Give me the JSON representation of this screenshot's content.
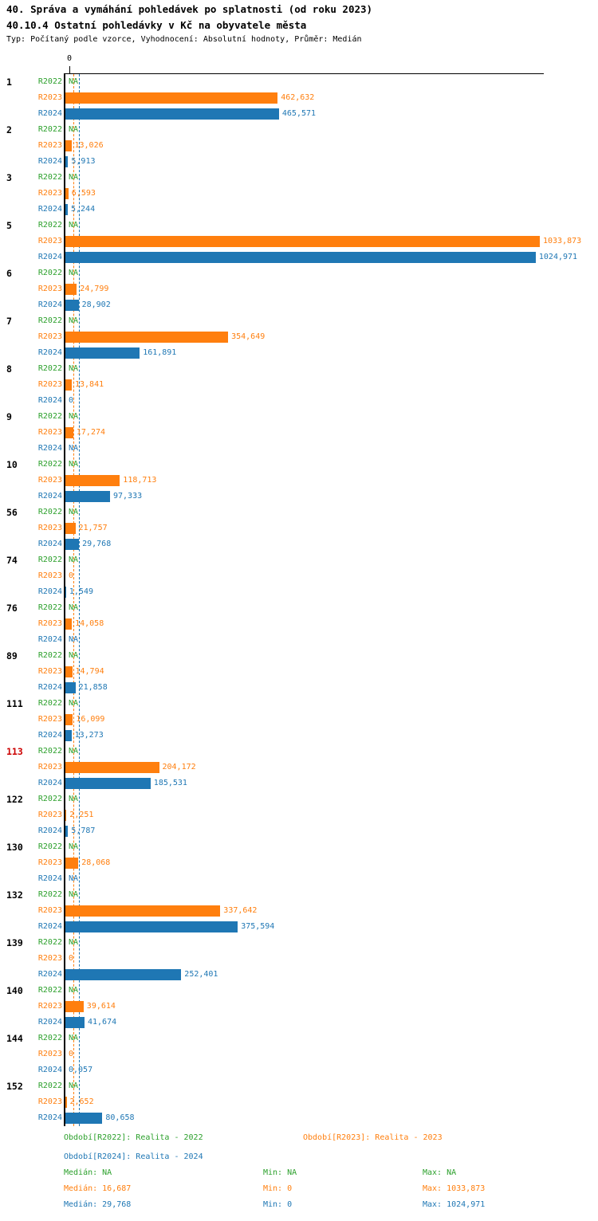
{
  "header": {
    "title": "40. Správa a vymáhání pohledávek po splatnosti (od roku 2023)",
    "subtitle": "40.10.4 Ostatní pohledávky v Kč na obyvatele města",
    "meta": "Typ: Počítaný podle vzorce, Vyhodnocení: Absolutní hodnoty, Průměr: Medián"
  },
  "axis": {
    "zero_label": "0"
  },
  "colors": {
    "r2022_green": "#2ca02c",
    "r2023_orange": "#ff7f0e",
    "r2024_blue": "#1f77b4",
    "highlight_red": "#cc0000",
    "axis_black": "#000000"
  },
  "chart_data": {
    "type": "bar",
    "orientation": "horizontal",
    "value_unit": "Kč na obyvatele města",
    "decimal_format": "czech-comma",
    "categories": [
      "1",
      "2",
      "3",
      "5",
      "6",
      "7",
      "8",
      "9",
      "10",
      "56",
      "74",
      "76",
      "89",
      "111",
      "113",
      "122",
      "130",
      "132",
      "139",
      "140",
      "144",
      "152"
    ],
    "highlighted_category": "113",
    "series": [
      {
        "name": "R2022",
        "legend": "Období[R2022]: Realita - 2022",
        "color": "#2ca02c",
        "values": [
          null,
          null,
          null,
          null,
          null,
          null,
          null,
          null,
          null,
          null,
          null,
          null,
          null,
          null,
          null,
          null,
          null,
          null,
          null,
          null,
          null,
          null
        ],
        "labels": [
          "NA",
          "NA",
          "NA",
          "NA",
          "NA",
          "NA",
          "NA",
          "NA",
          "NA",
          "NA",
          "NA",
          "NA",
          "NA",
          "NA",
          "NA",
          "NA",
          "NA",
          "NA",
          "NA",
          "NA",
          "NA",
          "NA"
        ],
        "stats": {
          "median_label": "Medián: NA",
          "min_label": "Min: NA",
          "max_label": "Max: NA"
        }
      },
      {
        "name": "R2023",
        "legend": "Období[R2023]: Realita - 2023",
        "color": "#ff7f0e",
        "values": [
          462.632,
          13.026,
          6.593,
          1033.873,
          24.799,
          354.649,
          13.841,
          17.274,
          118.713,
          21.757,
          0,
          14.058,
          14.794,
          16.099,
          204.172,
          2.251,
          28.068,
          337.642,
          0,
          39.614,
          0,
          2.652
        ],
        "labels": [
          "462,632",
          "13,026",
          "6,593",
          "1033,873",
          "24,799",
          "354,649",
          "13,841",
          "17,274",
          "118,713",
          "21,757",
          "0",
          "14,058",
          "14,794",
          "16,099",
          "204,172",
          "2,251",
          "28,068",
          "337,642",
          "0",
          "39,614",
          "0",
          "2,652"
        ],
        "stats": {
          "median_label": "Medián: 16,687",
          "min_label": "Min: 0",
          "max_label": "Max: 1033,873"
        }
      },
      {
        "name": "R2024",
        "legend": "Období[R2024]: Realita - 2024",
        "color": "#1f77b4",
        "values": [
          465.571,
          5.913,
          5.244,
          1024.971,
          28.902,
          161.891,
          0,
          null,
          97.333,
          29.768,
          1.549,
          null,
          21.858,
          13.273,
          185.531,
          5.787,
          null,
          375.594,
          252.401,
          41.674,
          0.057,
          80.658
        ],
        "labels": [
          "465,571",
          "5,913",
          "5,244",
          "1024,971",
          "28,902",
          "161,891",
          "0",
          "NA",
          "97,333",
          "29,768",
          "1,549",
          "NA",
          "21,858",
          "13,273",
          "185,531",
          "5,787",
          "NA",
          "375,594",
          "252,401",
          "41,674",
          "0,057",
          "80,658"
        ],
        "stats": {
          "median_label": "Medián: 29,768",
          "min_label": "Min: 0",
          "max_label": "Max: 1024,971"
        }
      }
    ],
    "median_lines": [
      {
        "series": "R2023",
        "value": 16.687,
        "color": "#ff7f0e"
      },
      {
        "series": "R2024",
        "value": 29.768,
        "color": "#1f77b4"
      }
    ]
  }
}
